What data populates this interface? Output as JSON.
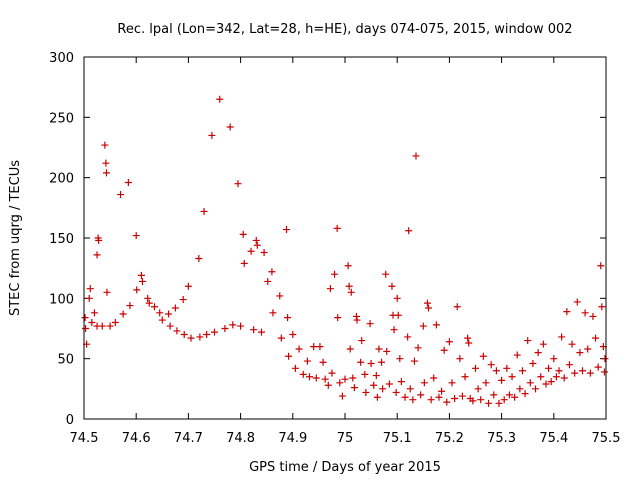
{
  "chart_data": {
    "type": "scatter",
    "title": "Rec. lpal (Lon=342, Lat=28, h=HE), days 074-075, 2015, window 002",
    "xlabel": "GPS time / Days of year 2015",
    "ylabel": "STEC from uqrg / TECUs",
    "xlim": [
      74.5,
      75.5
    ],
    "ylim": [
      0,
      300
    ],
    "x_ticks": [
      "74.5",
      "74.6",
      "74.7",
      "74.8",
      "74.9",
      "75",
      "75.1",
      "75.2",
      "75.3",
      "75.4",
      "75.5"
    ],
    "y_ticks": [
      "0",
      "50",
      "100",
      "150",
      "200",
      "250",
      "300"
    ],
    "grid": false,
    "legend": "none",
    "marker": "+",
    "color": "#cc0000",
    "series": [
      {
        "points": [
          [
            74.502,
            84
          ],
          [
            74.503,
            75
          ],
          [
            74.505,
            62
          ],
          [
            74.51,
            100
          ],
          [
            74.512,
            108
          ],
          [
            74.515,
            80
          ],
          [
            74.52,
            88
          ],
          [
            74.525,
            77
          ],
          [
            74.525,
            136
          ],
          [
            74.527,
            150
          ],
          [
            74.528,
            148
          ],
          [
            74.535,
            77
          ],
          [
            74.54,
            227
          ],
          [
            74.542,
            212
          ],
          [
            74.543,
            204
          ],
          [
            74.544,
            105
          ],
          [
            74.55,
            77
          ],
          [
            74.56,
            80
          ],
          [
            74.57,
            186
          ],
          [
            74.575,
            87
          ],
          [
            74.585,
            196
          ],
          [
            74.588,
            94
          ],
          [
            74.6,
            152
          ],
          [
            74.601,
            107
          ],
          [
            74.61,
            119
          ],
          [
            74.612,
            114
          ],
          [
            74.622,
            100
          ],
          [
            74.625,
            96
          ],
          [
            74.635,
            93
          ],
          [
            74.645,
            88
          ],
          [
            74.65,
            82
          ],
          [
            74.662,
            87
          ],
          [
            74.665,
            77
          ],
          [
            74.675,
            92
          ],
          [
            74.678,
            73
          ],
          [
            74.69,
            99
          ],
          [
            74.692,
            70
          ],
          [
            74.7,
            110
          ],
          [
            74.705,
            67
          ],
          [
            74.72,
            133
          ],
          [
            74.722,
            68
          ],
          [
            74.73,
            172
          ],
          [
            74.735,
            70
          ],
          [
            74.745,
            235
          ],
          [
            74.75,
            72
          ],
          [
            74.76,
            265
          ],
          [
            74.77,
            75
          ],
          [
            74.78,
            242
          ],
          [
            74.785,
            78
          ],
          [
            74.795,
            195
          ],
          [
            74.8,
            77
          ],
          [
            74.805,
            153
          ],
          [
            74.807,
            129
          ],
          [
            74.82,
            139
          ],
          [
            74.825,
            74
          ],
          [
            74.83,
            148
          ],
          [
            74.832,
            144
          ],
          [
            74.84,
            72
          ],
          [
            74.845,
            138
          ],
          [
            74.852,
            114
          ],
          [
            74.86,
            122
          ],
          [
            74.862,
            88
          ],
          [
            74.875,
            102
          ],
          [
            74.878,
            67
          ],
          [
            74.888,
            157
          ],
          [
            74.89,
            84
          ],
          [
            74.892,
            52
          ],
          [
            74.9,
            70
          ],
          [
            74.905,
            42
          ],
          [
            74.912,
            58
          ],
          [
            74.92,
            37
          ],
          [
            74.928,
            48
          ],
          [
            74.932,
            35
          ],
          [
            74.94,
            60
          ],
          [
            74.945,
            34
          ],
          [
            74.952,
            60
          ],
          [
            74.958,
            47
          ],
          [
            74.962,
            33
          ],
          [
            74.968,
            28
          ],
          [
            74.972,
            108
          ],
          [
            74.975,
            38
          ],
          [
            74.98,
            120
          ],
          [
            74.985,
            158
          ],
          [
            74.986,
            84
          ],
          [
            74.99,
            30
          ],
          [
            74.995,
            19
          ],
          [
            75.0,
            33
          ],
          [
            75.006,
            127
          ],
          [
            75.008,
            110
          ],
          [
            75.01,
            58
          ],
          [
            75.012,
            105
          ],
          [
            75.015,
            34
          ],
          [
            75.018,
            26
          ],
          [
            75.022,
            85
          ],
          [
            75.023,
            82
          ],
          [
            75.03,
            47
          ],
          [
            75.032,
            65
          ],
          [
            75.038,
            37
          ],
          [
            75.04,
            22
          ],
          [
            75.048,
            79
          ],
          [
            75.05,
            46
          ],
          [
            75.055,
            28
          ],
          [
            75.06,
            36
          ],
          [
            75.062,
            18
          ],
          [
            75.065,
            58
          ],
          [
            75.07,
            47
          ],
          [
            75.072,
            25
          ],
          [
            75.078,
            120
          ],
          [
            75.08,
            56
          ],
          [
            75.085,
            29
          ],
          [
            75.09,
            110
          ],
          [
            75.092,
            86
          ],
          [
            75.094,
            74
          ],
          [
            75.098,
            22
          ],
          [
            75.1,
            100
          ],
          [
            75.102,
            86
          ],
          [
            75.105,
            50
          ],
          [
            75.108,
            31
          ],
          [
            75.115,
            18
          ],
          [
            75.12,
            68
          ],
          [
            75.122,
            156
          ],
          [
            75.125,
            25
          ],
          [
            75.13,
            16
          ],
          [
            75.133,
            48
          ],
          [
            75.136,
            218
          ],
          [
            75.14,
            59
          ],
          [
            75.145,
            20
          ],
          [
            75.15,
            77
          ],
          [
            75.152,
            30
          ],
          [
            75.158,
            96
          ],
          [
            75.16,
            92
          ],
          [
            75.165,
            16
          ],
          [
            75.17,
            34
          ],
          [
            75.175,
            78
          ],
          [
            75.18,
            18
          ],
          [
            75.185,
            23
          ],
          [
            75.19,
            57
          ],
          [
            75.195,
            14
          ],
          [
            75.2,
            64
          ],
          [
            75.205,
            30
          ],
          [
            75.21,
            17
          ],
          [
            75.215,
            93
          ],
          [
            75.22,
            50
          ],
          [
            75.225,
            19
          ],
          [
            75.23,
            35
          ],
          [
            75.235,
            67
          ],
          [
            75.237,
            63
          ],
          [
            75.24,
            17
          ],
          [
            75.245,
            15
          ],
          [
            75.25,
            42
          ],
          [
            75.255,
            25
          ],
          [
            75.26,
            16
          ],
          [
            75.265,
            52
          ],
          [
            75.27,
            30
          ],
          [
            75.275,
            13
          ],
          [
            75.28,
            45
          ],
          [
            75.285,
            20
          ],
          [
            75.29,
            40
          ],
          [
            75.295,
            13
          ],
          [
            75.3,
            32
          ],
          [
            75.305,
            16
          ],
          [
            75.31,
            42
          ],
          [
            75.315,
            20
          ],
          [
            75.32,
            35
          ],
          [
            75.325,
            18
          ],
          [
            75.33,
            53
          ],
          [
            75.335,
            25
          ],
          [
            75.34,
            40
          ],
          [
            75.345,
            21
          ],
          [
            75.35,
            65
          ],
          [
            75.355,
            30
          ],
          [
            75.36,
            46
          ],
          [
            75.365,
            25
          ],
          [
            75.37,
            55
          ],
          [
            75.375,
            35
          ],
          [
            75.38,
            62
          ],
          [
            75.385,
            29
          ],
          [
            75.39,
            42
          ],
          [
            75.395,
            31
          ],
          [
            75.4,
            50
          ],
          [
            75.405,
            35
          ],
          [
            75.41,
            40
          ],
          [
            75.415,
            68
          ],
          [
            75.42,
            34
          ],
          [
            75.425,
            89
          ],
          [
            75.43,
            45
          ],
          [
            75.435,
            62
          ],
          [
            75.44,
            38
          ],
          [
            75.445,
            97
          ],
          [
            75.45,
            55
          ],
          [
            75.455,
            40
          ],
          [
            75.46,
            88
          ],
          [
            75.465,
            58
          ],
          [
            75.47,
            38
          ],
          [
            75.475,
            85
          ],
          [
            75.48,
            67
          ],
          [
            75.485,
            43
          ],
          [
            75.49,
            127
          ],
          [
            75.492,
            93
          ],
          [
            75.495,
            60
          ],
          [
            75.497,
            39
          ],
          [
            75.498,
            50
          ]
        ]
      }
    ]
  }
}
